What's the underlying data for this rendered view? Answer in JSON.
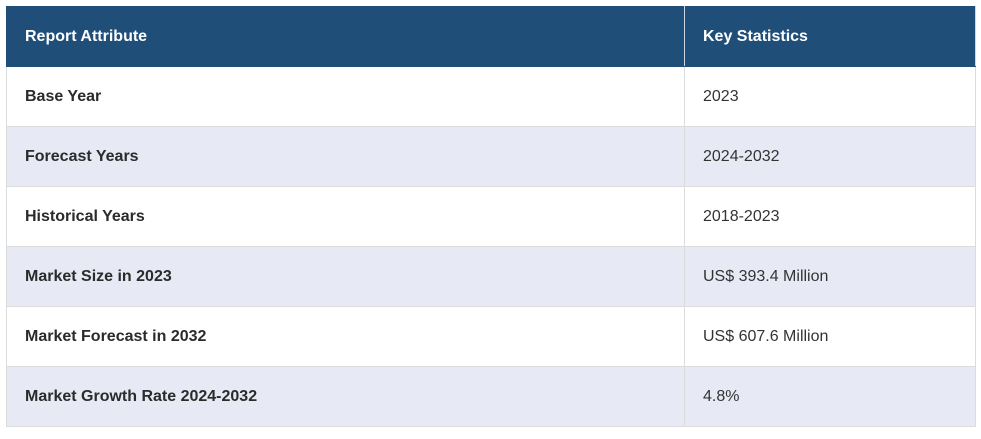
{
  "table": {
    "header": [
      "Report Attribute",
      "Key Statistics"
    ],
    "rows": [
      [
        "Base Year",
        "2023"
      ],
      [
        "Forecast Years",
        "2024-2032"
      ],
      [
        "Historical Years",
        "2018-2023"
      ],
      [
        "Market Size in 2023",
        "US$ 393.4 Million"
      ],
      [
        "Market Forecast in 2032",
        "US$ 607.6 Million"
      ],
      [
        "Market Growth Rate 2024-2032",
        "4.8%"
      ]
    ]
  }
}
